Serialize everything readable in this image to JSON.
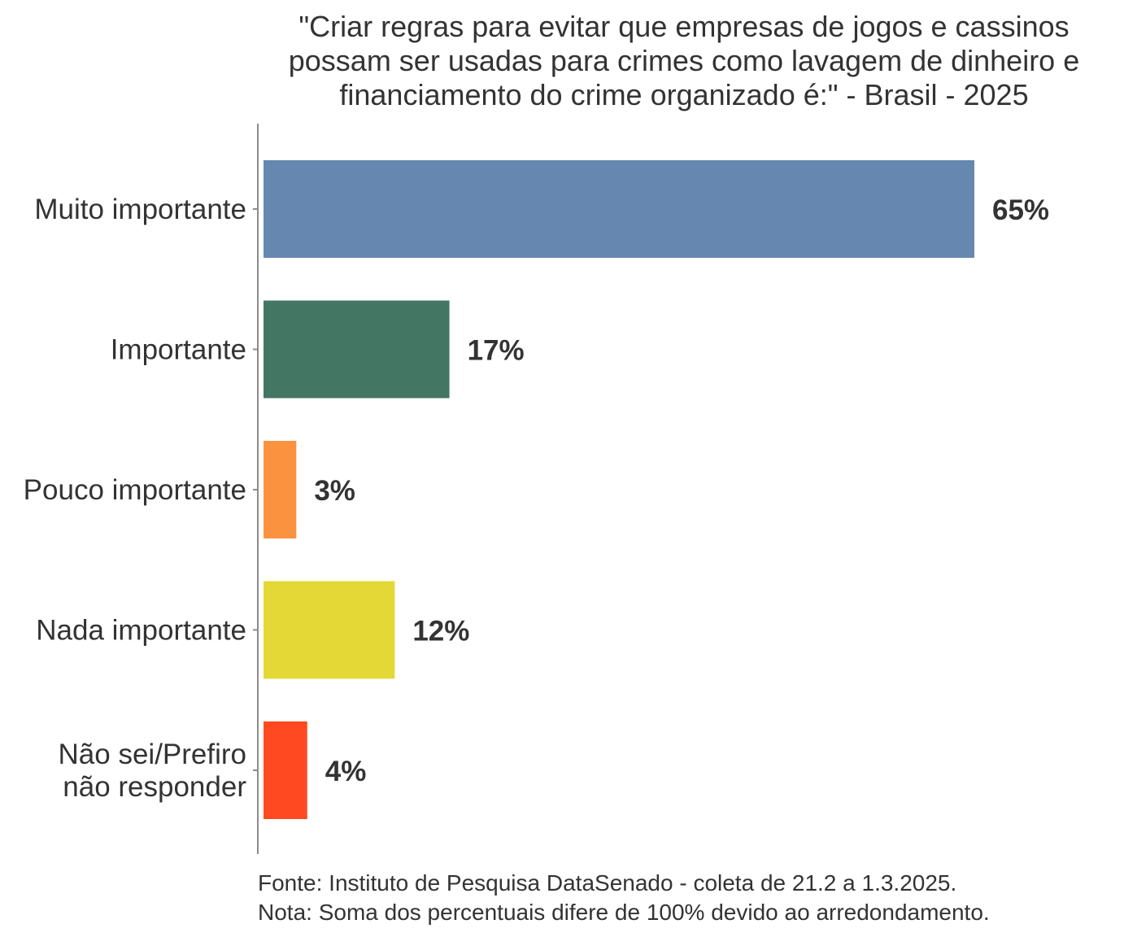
{
  "chart_data": {
    "type": "bar",
    "orientation": "horizontal",
    "title_lines": [
      "\"Criar regras para evitar que empresas de jogos e cassinos",
      "possam ser usadas para crimes como lavagem de dinheiro e",
      "financiamento do crime organizado é:\" - Brasil - 2025"
    ],
    "categories": [
      [
        "Muito importante"
      ],
      [
        "Importante"
      ],
      [
        "Pouco importante"
      ],
      [
        "Nada importante"
      ],
      [
        "Não sei/Prefiro",
        "não responder"
      ]
    ],
    "values": [
      65,
      17,
      3,
      12,
      4
    ],
    "value_labels": [
      "65%",
      "17%",
      "3%",
      "12%",
      "4%"
    ],
    "colors": [
      "#6688B0",
      "#447664",
      "#FB923F",
      "#E4D836",
      "#FF4A21"
    ],
    "xlim": [
      0,
      68
    ],
    "grid": false,
    "legend": "none",
    "notes": [
      "Fonte: Instituto de Pesquisa DataSenado - coleta de 21.2 a 1.3.2025.",
      "Nota: Soma dos percentuais difere de 100% devido ao arredondamento."
    ]
  }
}
